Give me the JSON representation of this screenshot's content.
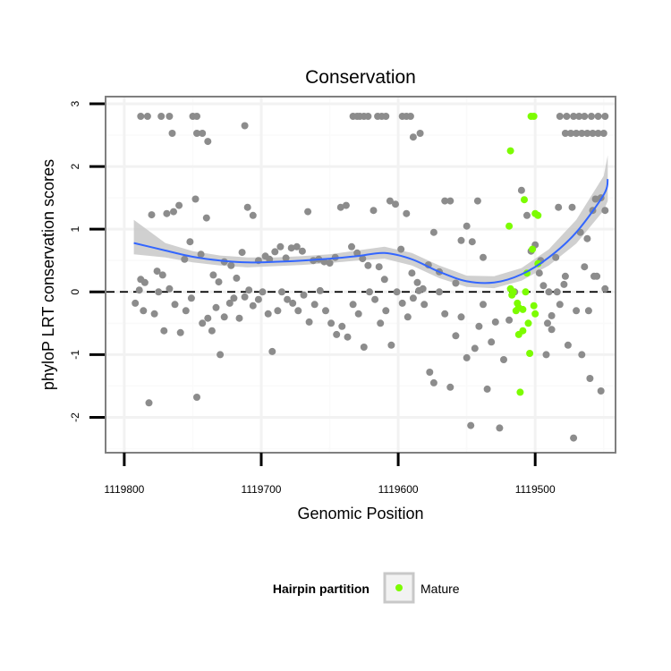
{
  "chart_data": {
    "type": "scatter",
    "title": "Conservation",
    "xlabel": "Genomic Position",
    "ylabel": "phyloP LRT conservation scores",
    "x_reversed": true,
    "xlim": [
      1119813,
      1119442
    ],
    "ylim": [
      -2.55,
      3.1
    ],
    "x_ticks": [
      1119800,
      1119700,
      1119600,
      1119500
    ],
    "x_tick_labels": [
      "1119800",
      "1119700",
      "1119600",
      "1119500"
    ],
    "y_ticks": [
      -2,
      -1,
      0,
      1,
      2,
      3
    ],
    "y_tick_labels": [
      "-2",
      "-1",
      "0",
      "1",
      "2",
      "3"
    ],
    "reference_line": {
      "y": 0,
      "style": "dashed"
    },
    "grid": true,
    "legend": {
      "title": "Hairpin partition",
      "position": "bottom",
      "entries": [
        {
          "label": "Mature",
          "color": "#7cfc00"
        }
      ]
    },
    "colors": {
      "other": "#8c8c8c",
      "mature": "#7cfc00",
      "smooth": "#3366ff",
      "band": "#c8c8c8"
    },
    "series": [
      {
        "name": "Other",
        "points": [
          [
            1119788,
            2.8
          ],
          [
            1119783,
            2.8
          ],
          [
            1119773,
            2.8
          ],
          [
            1119767,
            2.8
          ],
          [
            1119765,
            2.53
          ],
          [
            1119750,
            2.8
          ],
          [
            1119747,
            2.8
          ],
          [
            1119747,
            2.53
          ],
          [
            1119743,
            2.53
          ],
          [
            1119739,
            2.4
          ],
          [
            1119712,
            2.65
          ],
          [
            1119633,
            2.8
          ],
          [
            1119630,
            2.8
          ],
          [
            1119628,
            2.8
          ],
          [
            1119625,
            2.8
          ],
          [
            1119622,
            2.8
          ],
          [
            1119615,
            2.8
          ],
          [
            1119612,
            2.8
          ],
          [
            1119609,
            2.8
          ],
          [
            1119597,
            2.8
          ],
          [
            1119594,
            2.8
          ],
          [
            1119591,
            2.8
          ],
          [
            1119589,
            2.47
          ],
          [
            1119584,
            2.53
          ],
          [
            1119482,
            2.8
          ],
          [
            1119477,
            2.8
          ],
          [
            1119472,
            2.8
          ],
          [
            1119468,
            2.8
          ],
          [
            1119464,
            2.8
          ],
          [
            1119459,
            2.8
          ],
          [
            1119454,
            2.8
          ],
          [
            1119449,
            2.8
          ],
          [
            1119478,
            2.53
          ],
          [
            1119474,
            2.53
          ],
          [
            1119470,
            2.53
          ],
          [
            1119466,
            2.53
          ],
          [
            1119462,
            2.53
          ],
          [
            1119458,
            2.53
          ],
          [
            1119454,
            2.53
          ],
          [
            1119450,
            2.53
          ],
          [
            1119788,
            0.2
          ],
          [
            1119785,
            0.15
          ],
          [
            1119780,
            1.23
          ],
          [
            1119776,
            0.33
          ],
          [
            1119772,
            0.27
          ],
          [
            1119769,
            1.25
          ],
          [
            1119764,
            1.28
          ],
          [
            1119760,
            1.38
          ],
          [
            1119756,
            0.52
          ],
          [
            1119752,
            0.8
          ],
          [
            1119748,
            1.48
          ],
          [
            1119744,
            0.6
          ],
          [
            1119740,
            1.18
          ],
          [
            1119735,
            0.27
          ],
          [
            1119731,
            0.16
          ],
          [
            1119727,
            0.48
          ],
          [
            1119722,
            0.42
          ],
          [
            1119718,
            0.22
          ],
          [
            1119714,
            0.63
          ],
          [
            1119710,
            1.35
          ],
          [
            1119706,
            1.22
          ],
          [
            1119702,
            0.5
          ],
          [
            1119697,
            0.57
          ],
          [
            1119694,
            0.52
          ],
          [
            1119690,
            0.64
          ],
          [
            1119686,
            0.72
          ],
          [
            1119682,
            0.54
          ],
          [
            1119678,
            0.7
          ],
          [
            1119674,
            0.72
          ],
          [
            1119670,
            0.65
          ],
          [
            1119666,
            1.28
          ],
          [
            1119662,
            0.5
          ],
          [
            1119658,
            0.52
          ],
          [
            1119654,
            0.48
          ],
          [
            1119650,
            0.46
          ],
          [
            1119646,
            0.55
          ],
          [
            1119642,
            1.35
          ],
          [
            1119638,
            1.38
          ],
          [
            1119634,
            0.72
          ],
          [
            1119630,
            0.62
          ],
          [
            1119626,
            0.53
          ],
          [
            1119622,
            0.42
          ],
          [
            1119618,
            1.3
          ],
          [
            1119614,
            0.4
          ],
          [
            1119610,
            0.2
          ],
          [
            1119606,
            1.45
          ],
          [
            1119602,
            1.4
          ],
          [
            1119598,
            0.68
          ],
          [
            1119594,
            1.25
          ],
          [
            1119590,
            0.3
          ],
          [
            1119586,
            0.15
          ],
          [
            1119582,
            0.05
          ],
          [
            1119578,
            0.43
          ],
          [
            1119574,
            0.95
          ],
          [
            1119570,
            0.32
          ],
          [
            1119566,
            1.45
          ],
          [
            1119562,
            1.45
          ],
          [
            1119558,
            0.14
          ],
          [
            1119554,
            0.82
          ],
          [
            1119550,
            1.05
          ],
          [
            1119546,
            0.8
          ],
          [
            1119542,
            1.45
          ],
          [
            1119538,
            0.55
          ],
          [
            1119792,
            -0.18
          ],
          [
            1119789,
            0.03
          ],
          [
            1119786,
            -0.3
          ],
          [
            1119782,
            -1.77
          ],
          [
            1119778,
            -0.35
          ],
          [
            1119775,
            0.0
          ],
          [
            1119771,
            -0.62
          ],
          [
            1119767,
            0.05
          ],
          [
            1119763,
            -0.2
          ],
          [
            1119759,
            -0.65
          ],
          [
            1119755,
            -0.3
          ],
          [
            1119751,
            -0.1
          ],
          [
            1119747,
            -1.68
          ],
          [
            1119743,
            -0.5
          ],
          [
            1119739,
            -0.42
          ],
          [
            1119736,
            -0.62
          ],
          [
            1119733,
            -0.25
          ],
          [
            1119730,
            -1.0
          ],
          [
            1119727,
            -0.4
          ],
          [
            1119723,
            -0.18
          ],
          [
            1119720,
            -0.1
          ],
          [
            1119716,
            -0.42
          ],
          [
            1119712,
            -0.08
          ],
          [
            1119709,
            0.03
          ],
          [
            1119706,
            -0.22
          ],
          [
            1119702,
            -0.12
          ],
          [
            1119699,
            0.0
          ],
          [
            1119695,
            -0.35
          ],
          [
            1119692,
            -0.95
          ],
          [
            1119688,
            -0.3
          ],
          [
            1119685,
            0.0
          ],
          [
            1119681,
            -0.12
          ],
          [
            1119677,
            -0.18
          ],
          [
            1119673,
            -0.3
          ],
          [
            1119669,
            -0.05
          ],
          [
            1119665,
            -0.48
          ],
          [
            1119661,
            -0.2
          ],
          [
            1119657,
            0.02
          ],
          [
            1119653,
            -0.3
          ],
          [
            1119649,
            -0.5
          ],
          [
            1119645,
            -0.68
          ],
          [
            1119641,
            -0.55
          ],
          [
            1119637,
            -0.72
          ],
          [
            1119633,
            -0.2
          ],
          [
            1119629,
            -0.35
          ],
          [
            1119625,
            -0.88
          ],
          [
            1119621,
            0.0
          ],
          [
            1119617,
            -0.12
          ],
          [
            1119613,
            -0.5
          ],
          [
            1119609,
            -0.3
          ],
          [
            1119605,
            -0.85
          ],
          [
            1119601,
            0.0
          ],
          [
            1119597,
            -0.18
          ],
          [
            1119593,
            -0.4
          ],
          [
            1119589,
            -0.1
          ],
          [
            1119585,
            0.02
          ],
          [
            1119581,
            -0.2
          ],
          [
            1119577,
            -1.28
          ],
          [
            1119574,
            -1.45
          ],
          [
            1119570,
            0.0
          ],
          [
            1119566,
            -0.35
          ],
          [
            1119562,
            -1.52
          ],
          [
            1119558,
            -0.7
          ],
          [
            1119554,
            -0.4
          ],
          [
            1119550,
            -1.05
          ],
          [
            1119547,
            -2.13
          ],
          [
            1119544,
            -0.9
          ],
          [
            1119541,
            -0.55
          ],
          [
            1119538,
            -0.2
          ],
          [
            1119535,
            -1.55
          ],
          [
            1119532,
            -0.8
          ],
          [
            1119529,
            -0.48
          ],
          [
            1119526,
            -2.17
          ],
          [
            1119523,
            -1.08
          ],
          [
            1119519,
            -0.45
          ],
          [
            1119515,
            0.0
          ],
          [
            1119510,
            1.62
          ],
          [
            1119506,
            1.22
          ],
          [
            1119503,
            0.65
          ],
          [
            1119500,
            0.75
          ],
          [
            1119497,
            0.3
          ],
          [
            1119494,
            0.1
          ],
          [
            1119491,
            -0.5
          ],
          [
            1119488,
            -0.38
          ],
          [
            1119485,
            0.55
          ],
          [
            1119482,
            -0.2
          ],
          [
            1119479,
            0.12
          ],
          [
            1119476,
            -0.85
          ],
          [
            1119473,
            1.35
          ],
          [
            1119470,
            -0.3
          ],
          [
            1119467,
            0.95
          ],
          [
            1119464,
            0.4
          ],
          [
            1119461,
            -0.3
          ],
          [
            1119458,
            1.3
          ],
          [
            1119455,
            0.25
          ],
          [
            1119452,
            -1.58
          ],
          [
            1119449,
            0.05
          ],
          [
            1119466,
            -1.0
          ],
          [
            1119460,
            -1.38
          ],
          [
            1119472,
            -2.33
          ],
          [
            1119478,
            0.25
          ],
          [
            1119484,
            0.0
          ],
          [
            1119488,
            -0.6
          ],
          [
            1119492,
            -1.0
          ],
          [
            1119490,
            0.0
          ],
          [
            1119496,
            0.5
          ],
          [
            1119456,
            1.48
          ],
          [
            1119452,
            1.5
          ],
          [
            1119462,
            0.85
          ],
          [
            1119449,
            1.3
          ],
          [
            1119483,
            1.35
          ],
          [
            1119457,
            0.25
          ]
        ]
      },
      {
        "name": "Mature",
        "points": [
          [
            1119503,
            2.8
          ],
          [
            1119501,
            2.8
          ],
          [
            1119518,
            2.25
          ],
          [
            1119508,
            1.47
          ],
          [
            1119519,
            1.05
          ],
          [
            1119500,
            1.25
          ],
          [
            1119498,
            1.22
          ],
          [
            1119502,
            0.68
          ],
          [
            1119498,
            0.45
          ],
          [
            1119506,
            0.3
          ],
          [
            1119518,
            0.05
          ],
          [
            1119516,
            0.0
          ],
          [
            1119517,
            -0.05
          ],
          [
            1119513,
            -0.18
          ],
          [
            1119512,
            -0.25
          ],
          [
            1119509,
            -0.28
          ],
          [
            1119507,
            0.0
          ],
          [
            1119505,
            -0.5
          ],
          [
            1119501,
            -0.22
          ],
          [
            1119512,
            -0.68
          ],
          [
            1119509,
            -0.62
          ],
          [
            1119504,
            -0.98
          ],
          [
            1119511,
            -1.6
          ],
          [
            1119514,
            -0.3
          ],
          [
            1119500,
            -0.35
          ]
        ]
      }
    ],
    "smooth": {
      "x": [
        1119793,
        1119770,
        1119750,
        1119730,
        1119710,
        1119690,
        1119670,
        1119650,
        1119630,
        1119610,
        1119590,
        1119570,
        1119550,
        1119530,
        1119510,
        1119490,
        1119470,
        1119450,
        1119447
      ],
      "y": [
        0.78,
        0.66,
        0.56,
        0.5,
        0.47,
        0.48,
        0.5,
        0.53,
        0.57,
        0.62,
        0.52,
        0.32,
        0.17,
        0.15,
        0.28,
        0.55,
        0.95,
        1.55,
        1.8
      ],
      "lower": [
        0.6,
        0.55,
        0.47,
        0.42,
        0.39,
        0.41,
        0.43,
        0.46,
        0.5,
        0.53,
        0.42,
        0.22,
        0.08,
        0.06,
        0.18,
        0.42,
        0.77,
        1.3,
        1.45
      ],
      "upper": [
        1.15,
        0.78,
        0.65,
        0.58,
        0.55,
        0.55,
        0.57,
        0.6,
        0.66,
        0.72,
        0.62,
        0.42,
        0.26,
        0.25,
        0.38,
        0.68,
        1.15,
        1.85,
        2.18
      ]
    }
  }
}
